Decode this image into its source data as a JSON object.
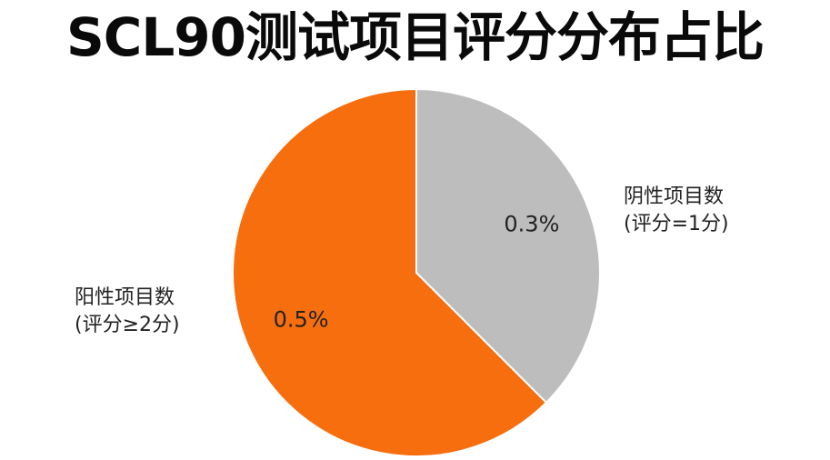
{
  "title": "SCL90测试项目评分分布占比",
  "colors": {
    "positive": "#F76E0E",
    "negative": "#BDBDBD",
    "border": "#FFFFFF"
  },
  "chart_data": {
    "type": "pie",
    "title": "SCL90测试项目评分分布占比",
    "start_angle_deg": 0,
    "direction": "clockwise",
    "slices": [
      {
        "key": "negative",
        "label_line1": "阴性项目数",
        "label_line2": "(评分=1分)",
        "data_label": "0.3%",
        "value": 0.3
      },
      {
        "key": "positive",
        "label_line1": "阳性项目数",
        "label_line2": "(评分≥2分)",
        "data_label": "0.5%",
        "value": 0.5
      }
    ]
  }
}
